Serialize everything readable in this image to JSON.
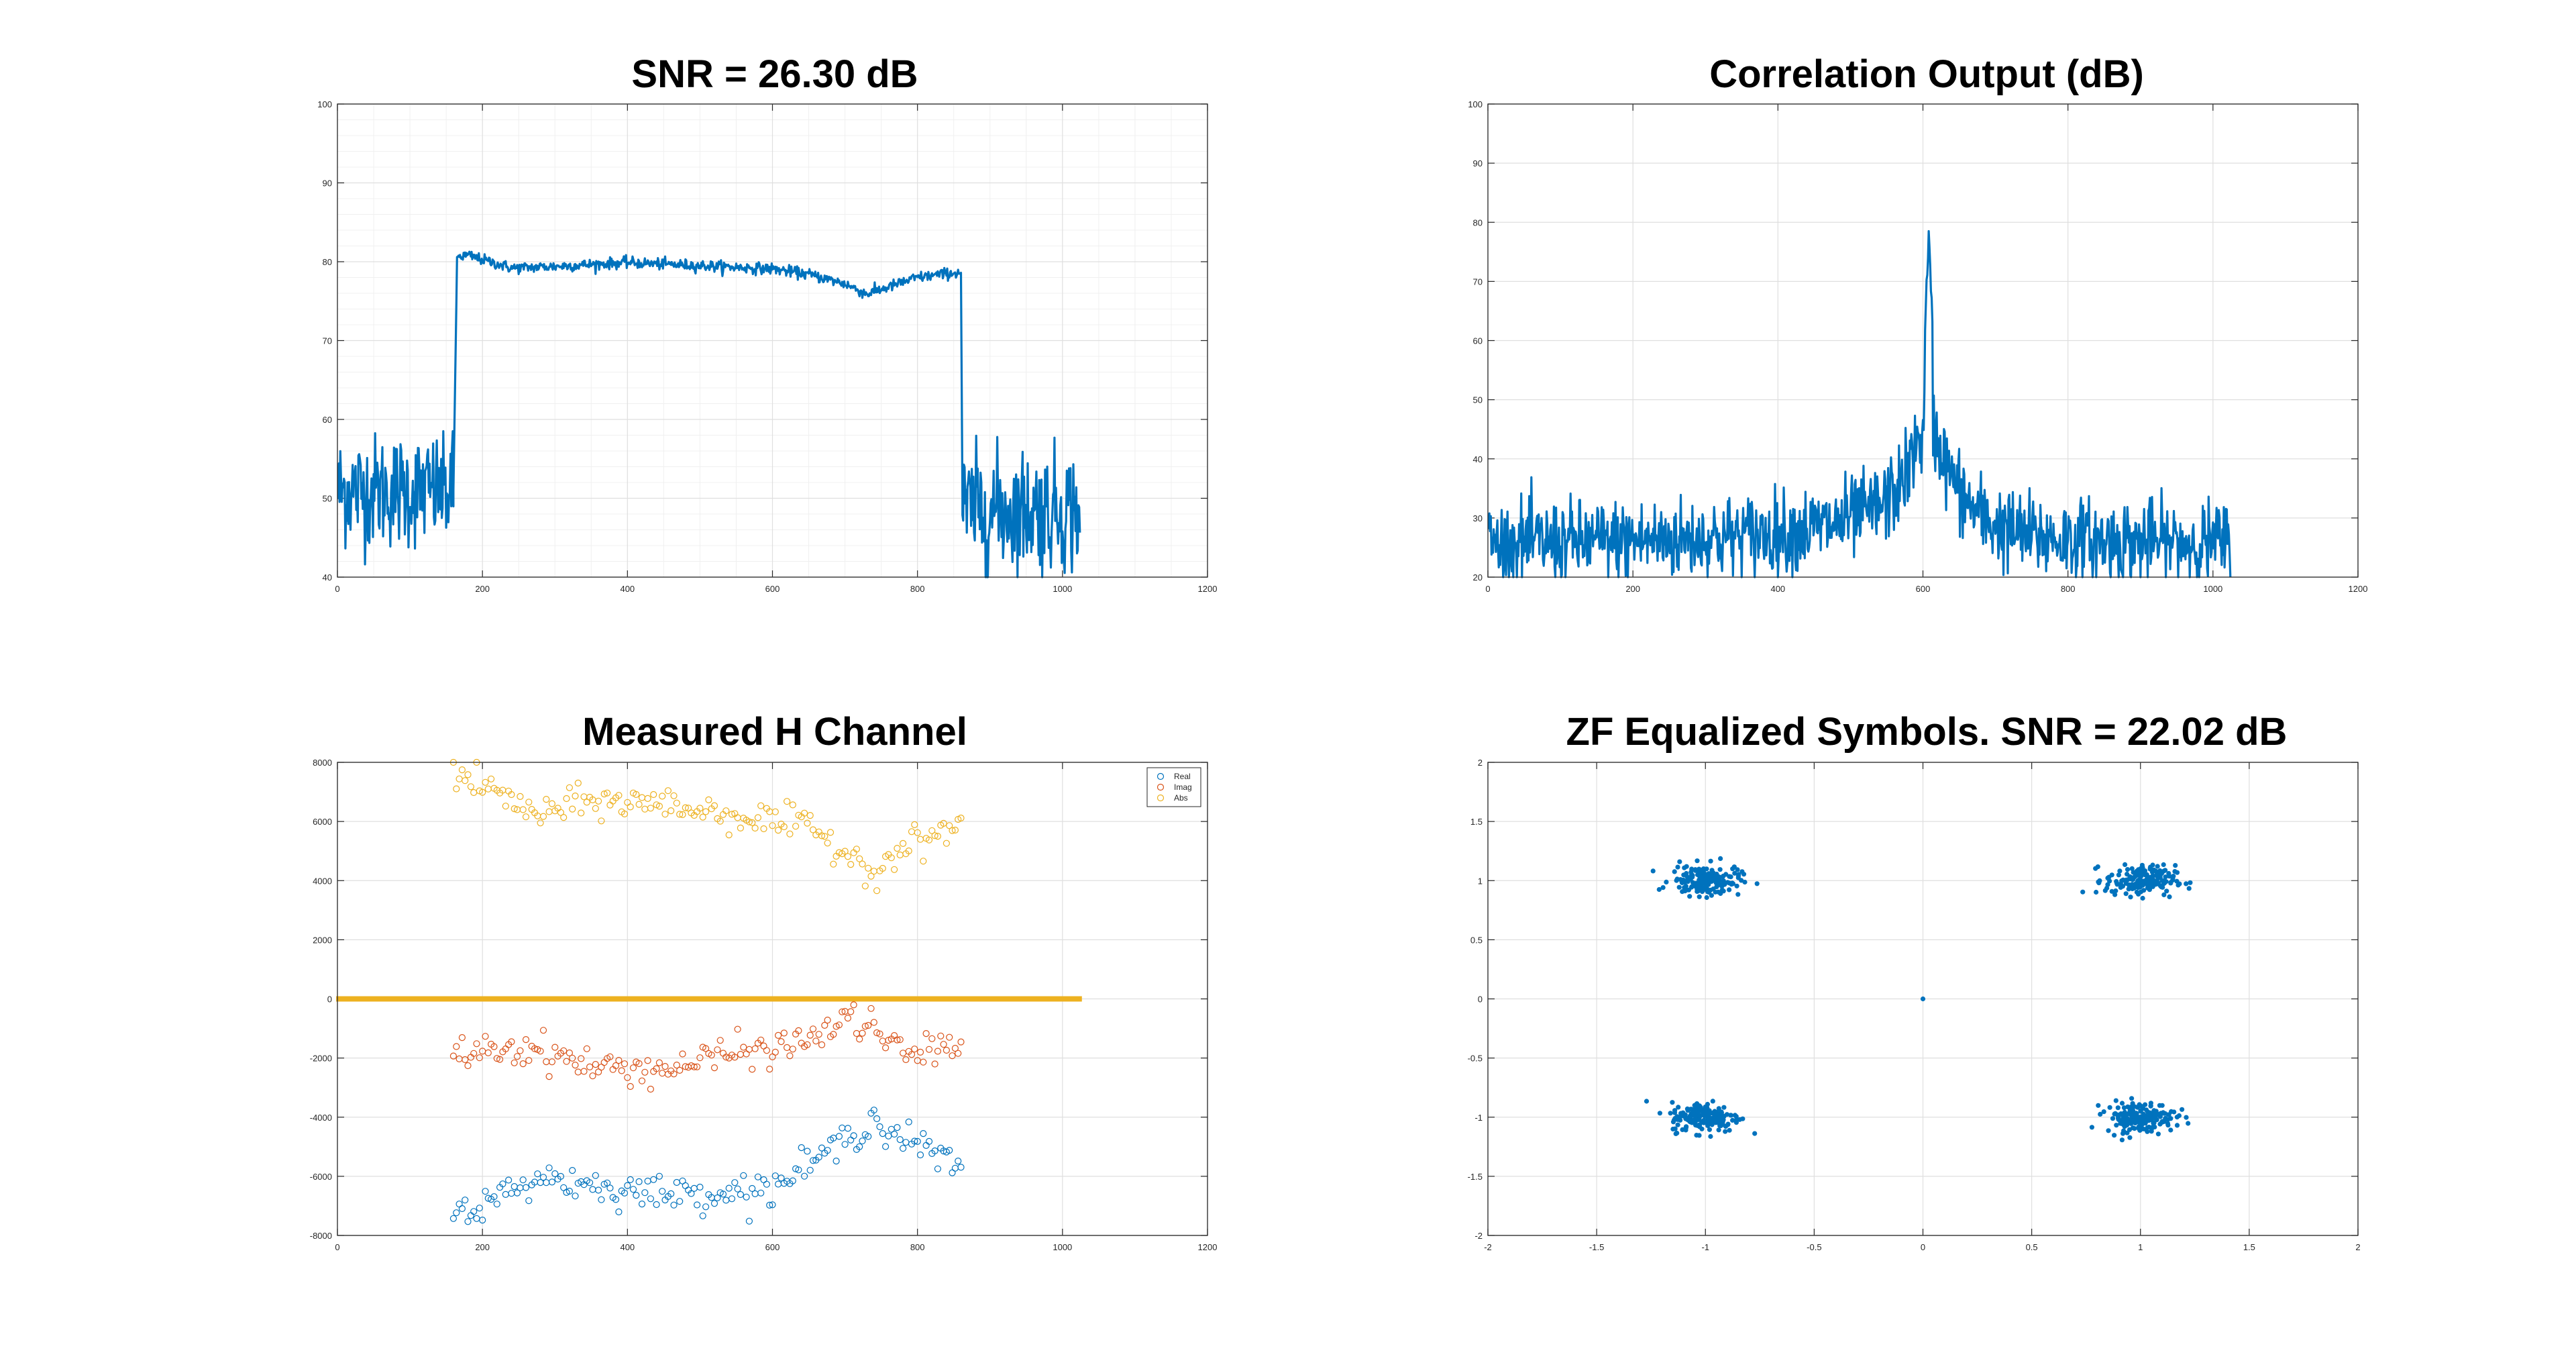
{
  "chart_data": [
    {
      "type": "line",
      "title": "SNR = 26.30 dB",
      "xlabel": "",
      "ylabel": "",
      "xlim": [
        0,
        1200
      ],
      "ylim": [
        40,
        100
      ],
      "xticks": [
        0,
        200,
        400,
        600,
        800,
        1000,
        1200
      ],
      "yticks": [
        40,
        50,
        60,
        70,
        80,
        90,
        100
      ],
      "grid": true,
      "minor_grid": true,
      "color": "#0072BD",
      "series": [
        {
          "model": "noise_floor",
          "x_range": [
            1,
            160
          ],
          "mean": 51,
          "spread": 6.5,
          "min": 40,
          "max": 58.5
        },
        {
          "model": "band_profile",
          "x": [
            160,
            165,
            180,
            240,
            300,
            400,
            500,
            600,
            650,
            700,
            730,
            760,
            800,
            840,
            860,
            862
          ],
          "y": [
            51,
            80.6,
            80.8,
            79.2,
            79.4,
            79.9,
            79.5,
            79.1,
            78.4,
            77.2,
            75.9,
            76.8,
            78.0,
            78.5,
            78.6,
            50
          ]
        },
        {
          "model": "noise_floor",
          "x_range": [
            862,
            1024
          ],
          "mean": 48.5,
          "spread": 7,
          "min": 40,
          "max": 62.5
        }
      ]
    },
    {
      "type": "line",
      "title": "Correlation Output (dB)",
      "xlabel": "",
      "ylabel": "",
      "xlim": [
        0,
        1200
      ],
      "ylim": [
        20,
        100
      ],
      "xticks": [
        0,
        200,
        400,
        600,
        800,
        1000,
        1200
      ],
      "yticks": [
        20,
        30,
        40,
        50,
        60,
        70,
        80,
        90,
        100
      ],
      "grid": true,
      "color": "#0072BD",
      "peak": {
        "x": 608,
        "y": 78.5
      },
      "noise_floor_mean": 25.5,
      "x_range": [
        1,
        1024
      ]
    },
    {
      "type": "scatter",
      "title": "Measured H Channel",
      "xlabel": "",
      "ylabel": "",
      "xlim": [
        0,
        1200
      ],
      "ylim": [
        -8000,
        8000
      ],
      "xticks": [
        0,
        200,
        400,
        600,
        800,
        1000,
        1200
      ],
      "yticks": [
        -8000,
        -6000,
        -4000,
        -2000,
        0,
        2000,
        4000,
        6000,
        8000
      ],
      "grid": true,
      "legend": {
        "placement": "top-right",
        "entries": [
          "Real",
          "Imag",
          "Abs"
        ]
      },
      "series": [
        {
          "name": "Real",
          "color": "#0072BD",
          "x": [
            160,
            200,
            280,
            350,
            450,
            550,
            600,
            650,
            700,
            740,
            760,
            800,
            860
          ],
          "y": [
            -7200,
            -7000,
            -6000,
            -6300,
            -6600,
            -6500,
            -6400,
            -5600,
            -4800,
            -4000,
            -4500,
            -4900,
            -5800
          ]
        },
        {
          "name": "Imag",
          "color": "#D95319",
          "x": [
            160,
            200,
            280,
            350,
            450,
            550,
            600,
            650,
            700,
            740,
            760,
            800,
            860
          ],
          "y": [
            -1900,
            -1700,
            -1700,
            -2300,
            -2400,
            -1800,
            -1700,
            -1400,
            -700,
            -900,
            -1600,
            -1900,
            -1400
          ]
        },
        {
          "name": "Abs",
          "color": "#EDB120",
          "x": [
            160,
            200,
            280,
            350,
            450,
            550,
            600,
            650,
            700,
            740,
            760,
            800,
            860
          ],
          "y": [
            7600,
            7200,
            6200,
            6700,
            6600,
            6200,
            6000,
            5800,
            5000,
            4300,
            4800,
            5300,
            5900
          ]
        }
      ],
      "zero_band": {
        "color": "#EDB120",
        "x_range": [
          1,
          1024
        ],
        "y": 0
      }
    },
    {
      "type": "scatter",
      "title": "ZF Equalized Symbols. SNR = 22.02 dB",
      "xlabel": "",
      "ylabel": "",
      "xlim": [
        -2,
        2
      ],
      "ylim": [
        -2,
        2
      ],
      "xticks": [
        -2,
        -1.5,
        -1,
        -0.5,
        0,
        0.5,
        1,
        1.5,
        2
      ],
      "yticks": [
        -2,
        -1.5,
        -1,
        -0.5,
        0,
        0.5,
        1,
        1.5,
        2
      ],
      "grid": true,
      "color": "#0072BD",
      "clusters": [
        {
          "center": [
            -1,
            1
          ],
          "spread": 0.08
        },
        {
          "center": [
            1,
            1
          ],
          "spread": 0.08
        },
        {
          "center": [
            -1,
            -1
          ],
          "spread": 0.08
        },
        {
          "center": [
            1,
            -1
          ],
          "spread": 0.08
        }
      ],
      "extra_points": [
        [
          0,
          0
        ]
      ]
    }
  ]
}
